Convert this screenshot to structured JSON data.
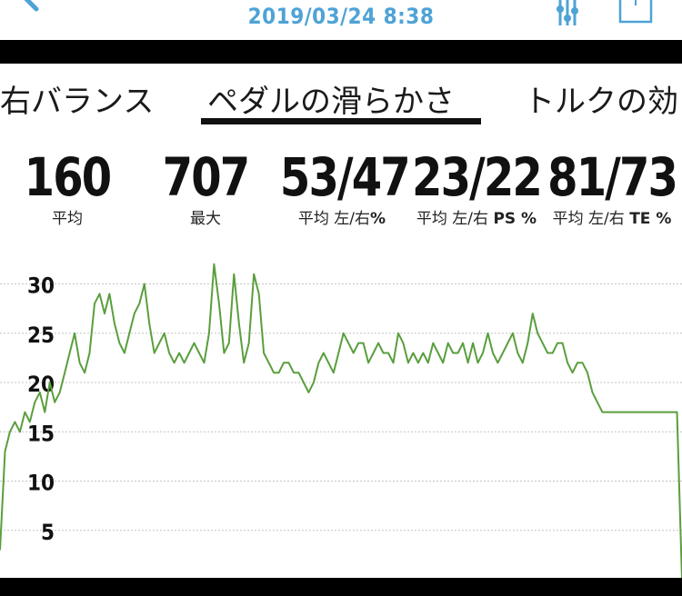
{
  "header": {
    "datetime": "2019/03/24 8:38",
    "back_icon": "chevron-left-icon",
    "filter_icon": "sliders-icon",
    "share_icon": "share-icon",
    "accent": "#4ea3d6"
  },
  "tabs": [
    {
      "label": "右バランス",
      "active": false
    },
    {
      "label": "ペダルの滑らかさ",
      "active": true
    },
    {
      "label": "トルクの効",
      "active": false
    }
  ],
  "stats": [
    {
      "value": "160",
      "label": "平均"
    },
    {
      "value": "707",
      "label": "最大"
    },
    {
      "value": "53/47",
      "label_pre": "平均 左/右",
      "label_bold": "%"
    },
    {
      "value": "23/22",
      "label_pre": "平均 左/右 ",
      "label_bold": "PS %"
    },
    {
      "value": "81/73",
      "label_pre": "平均 左/右 ",
      "label_bold": "TE %"
    }
  ],
  "chart_data": {
    "type": "line",
    "line_color": "#5a9e3e",
    "grid": true,
    "ylim": [
      0,
      33
    ],
    "y_ticks": [
      "5",
      "10",
      "15",
      "20",
      "25",
      "30"
    ],
    "series": [
      {
        "y": [
          3,
          13,
          15,
          16,
          15,
          17,
          16,
          18,
          19,
          17,
          20,
          18,
          19,
          21,
          23,
          25,
          22,
          21,
          23,
          28,
          29,
          27,
          29,
          26,
          24,
          23,
          25,
          27,
          28,
          30,
          26,
          23,
          24,
          25,
          23,
          22,
          23,
          22,
          23,
          24,
          23,
          22,
          25,
          32,
          28,
          23,
          24,
          31,
          26,
          22,
          24,
          31,
          29,
          23,
          22,
          21,
          21,
          22,
          22,
          21,
          21,
          20,
          19,
          20,
          22,
          23,
          22,
          21,
          23,
          25,
          24,
          23,
          24,
          24,
          22,
          23,
          24,
          23,
          23,
          22,
          25,
          24,
          22,
          23,
          22,
          23,
          22,
          24,
          23,
          22,
          24,
          23,
          23,
          24,
          22,
          24,
          22,
          23,
          25,
          23,
          22,
          23,
          24,
          25,
          23,
          22,
          24,
          27,
          25,
          24,
          23,
          23,
          24,
          24,
          22,
          21,
          22,
          22,
          21,
          19,
          18,
          17,
          17,
          17,
          17,
          17,
          17,
          17,
          17,
          17,
          17,
          17,
          17,
          17,
          17,
          17,
          17,
          0
        ]
      }
    ]
  }
}
